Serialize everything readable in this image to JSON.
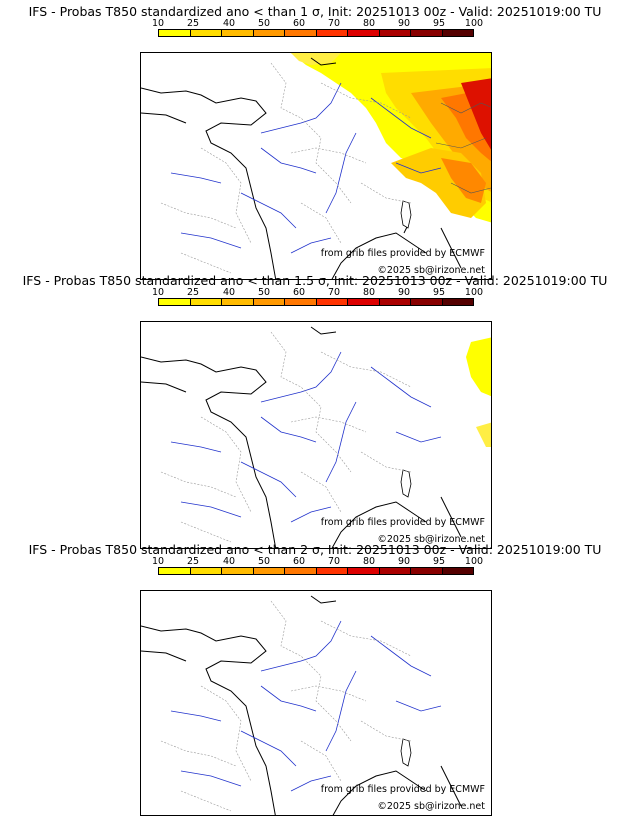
{
  "panels": [
    {
      "title": "IFS - Probas T850  standardized ano < than 1 σ, Init: 20251013 00z - Valid: 20251019:00 TU",
      "legend_ticks": [
        "10",
        "25",
        "40",
        "50",
        "60",
        "70",
        "80",
        "90",
        "95",
        "100"
      ],
      "grib_credit": "from grib files provided by ECMWF",
      "copyright": "©2025 sb@irizone.net"
    },
    {
      "title": "IFS - Probas T850  standardized ano < than 1.5 σ, Init: 20251013 00z - Valid: 20251019:00 TU",
      "legend_ticks": [
        "10",
        "25",
        "40",
        "50",
        "60",
        "70",
        "80",
        "90",
        "95",
        "100"
      ],
      "grib_credit": "from grib files provided by ECMWF",
      "copyright": "©2025 sb@irizone.net"
    },
    {
      "title": "IFS - Probas T850  standardized ano < than 2 σ, Init: 20251013 00z - Valid: 20251019:00 TU",
      "legend_ticks": [
        "10",
        "25",
        "40",
        "50",
        "60",
        "70",
        "80",
        "90",
        "95",
        "100"
      ],
      "grib_credit": "from grib files provided by ECMWF",
      "copyright": "©2025 sb@irizone.net"
    }
  ],
  "legend_colors": [
    "#ffff00",
    "#ffdd00",
    "#ffbb00",
    "#ff9900",
    "#ff7700",
    "#ff3300",
    "#dd0000",
    "#aa0000",
    "#880000",
    "#550000"
  ],
  "colors": {
    "rivers": "#2233cc",
    "borders": "#999999",
    "coast": "#000000"
  }
}
